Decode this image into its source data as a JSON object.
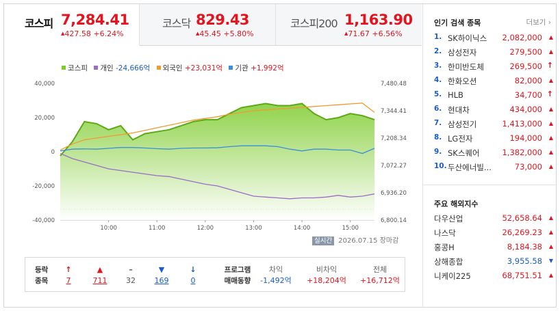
{
  "tabs": [
    {
      "name": "코스피",
      "value": "7,284.41",
      "change": "427.58 +6.24%"
    },
    {
      "name": "코스닥",
      "value": "829.43",
      "change": "45.45 +5.80%"
    },
    {
      "name": "코스피200",
      "value": "1,163.90",
      "change": "71.67 +6.56%"
    }
  ],
  "legend": {
    "kospi": "코스피",
    "individual": "개인",
    "individual_val": "-24,666억",
    "foreign": "외국인",
    "foreign_val": "+23,031억",
    "institution": "기관",
    "institution_val": "+1,992억"
  },
  "colors": {
    "kospi": "#7ecb2d",
    "individual": "#9b6bc5",
    "foreign": "#f29a2e",
    "institution": "#3a8fdc",
    "up": "#e4141e",
    "down": "#1a5cc9"
  },
  "chart_data": {
    "type": "line",
    "x": [
      "09:00",
      "09:15",
      "09:30",
      "09:45",
      "10:00",
      "10:15",
      "10:30",
      "10:45",
      "11:00",
      "11:15",
      "11:30",
      "11:45",
      "12:00",
      "12:15",
      "12:30",
      "12:45",
      "13:00",
      "13:15",
      "13:30",
      "13:45",
      "14:00",
      "14:15",
      "14:30",
      "14:45",
      "15:00",
      "15:15",
      "15:30"
    ],
    "x_ticks": [
      "10:00",
      "11:00",
      "12:00",
      "13:00",
      "14:00",
      "15:00"
    ],
    "left_axis": {
      "ticks": [
        "40,000",
        "20,000",
        "0",
        "-20,000",
        "-40,000"
      ],
      "ylim": [
        -40000,
        40000
      ]
    },
    "right_axis": {
      "ticks": [
        "7,480.48",
        "7,344.41",
        "7,208.34",
        "7,072.27",
        "6,936.20",
        "6,800.14"
      ],
      "ylim": [
        6800.14,
        7480.48
      ]
    },
    "series": [
      {
        "name": "코스피",
        "axis": "right",
        "values": [
          7120,
          7190,
          7290,
          7280,
          7250,
          7270,
          7200,
          7230,
          7240,
          7250,
          7270,
          7290,
          7300,
          7300,
          7330,
          7360,
          7370,
          7380,
          7370,
          7370,
          7380,
          7330,
          7300,
          7310,
          7330,
          7320,
          7300
        ]
      },
      {
        "name": "개인",
        "axis": "left",
        "values": [
          -1000,
          -4000,
          -6000,
          -8000,
          -10000,
          -11000,
          -12000,
          -13000,
          -14000,
          -14500,
          -16000,
          -17500,
          -19000,
          -20000,
          -22000,
          -24000,
          -26000,
          -26500,
          -27000,
          -27500,
          -27000,
          -27000,
          -26500,
          -25500,
          -26500,
          -26000,
          -24666
        ]
      },
      {
        "name": "외국인",
        "axis": "left",
        "values": [
          1000,
          4500,
          7000,
          8000,
          9000,
          10000,
          11000,
          12500,
          14000,
          15500,
          17000,
          18500,
          19500,
          20500,
          22000,
          23000,
          24000,
          24500,
          25000,
          25500,
          26000,
          26500,
          27000,
          27500,
          28000,
          28500,
          23031
        ]
      },
      {
        "name": "기관",
        "axis": "left",
        "values": [
          500,
          1500,
          1700,
          1500,
          2000,
          2500,
          2500,
          2200,
          1800,
          1500,
          2000,
          2200,
          2200,
          2300,
          3000,
          3500,
          3500,
          3500,
          3000,
          1500,
          500,
          1500,
          1500,
          1000,
          1000,
          -1000,
          1992
        ]
      }
    ]
  },
  "realtime": {
    "badge": "실시간",
    "date": "2026.07.15",
    "status": "장마감"
  },
  "rise_fall": {
    "label1": "등락",
    "label2": "종목",
    "items": [
      {
        "sym": "↑",
        "count": "7",
        "tone": "red"
      },
      {
        "sym": "▲",
        "count": "711",
        "tone": "red"
      },
      {
        "sym": "–",
        "count": "32",
        "tone": "gray"
      },
      {
        "sym": "▼",
        "count": "169",
        "tone": "blue"
      },
      {
        "sym": "↓",
        "count": "0",
        "tone": "blue"
      }
    ]
  },
  "program": {
    "label1": "프로그램",
    "label2": "매매동향",
    "items": [
      {
        "head": "차익",
        "value": "-1,492억",
        "tone": "blue"
      },
      {
        "head": "비차익",
        "value": "+18,204억",
        "tone": "red"
      },
      {
        "head": "전체",
        "value": "+16,712억",
        "tone": "red"
      }
    ]
  },
  "popular": {
    "title": "인기 검색 종목",
    "more": "더보기",
    "items": [
      {
        "rank": "1.",
        "name": "SK하이닉스",
        "price": "2,082,000",
        "arrow": "▲"
      },
      {
        "rank": "2.",
        "name": "삼성전자",
        "price": "279,500",
        "arrow": "▲"
      },
      {
        "rank": "3.",
        "name": "한미반도체",
        "price": "269,500",
        "arrow": "↑"
      },
      {
        "rank": "4.",
        "name": "한화오션",
        "price": "82,000",
        "arrow": "▲"
      },
      {
        "rank": "5.",
        "name": "HLB",
        "price": "34,700",
        "arrow": "↑"
      },
      {
        "rank": "6.",
        "name": "현대차",
        "price": "434,000",
        "arrow": "▲"
      },
      {
        "rank": "7.",
        "name": "삼성전기",
        "price": "1,413,000",
        "arrow": "▲"
      },
      {
        "rank": "8.",
        "name": "LG전자",
        "price": "194,000",
        "arrow": "▲"
      },
      {
        "rank": "9.",
        "name": "SK스퀘어",
        "price": "1,382,000",
        "arrow": "▲"
      },
      {
        "rank": "10.",
        "name": "두산에너빌...",
        "price": "73,000",
        "arrow": "▲"
      }
    ]
  },
  "world": {
    "title": "주요 해외지수",
    "items": [
      {
        "name": "다우산업",
        "price": "52,658.64",
        "arrow": "▲",
        "tone": "red"
      },
      {
        "name": "나스닥",
        "price": "26,269.23",
        "arrow": "▲",
        "tone": "red"
      },
      {
        "name": "홍콩H",
        "price": "8,184.38",
        "arrow": "▲",
        "tone": "red"
      },
      {
        "name": "상해종합",
        "price": "3,955.58",
        "arrow": "▼",
        "tone": "blue"
      },
      {
        "name": "니케이225",
        "price": "68,751.51",
        "arrow": "▲",
        "tone": "red"
      }
    ]
  }
}
